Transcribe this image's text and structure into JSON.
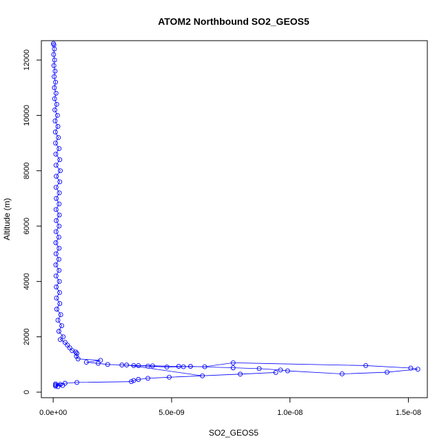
{
  "chart_data": {
    "type": "line",
    "title": "ATOM2 Northbound SO2_GEOS5",
    "xlabel": "SO2_GEOS5",
    "ylabel": "Altitude (m)",
    "xlim": [
      -5e-10,
      1.58e-08
    ],
    "ylim": [
      -200,
      12700
    ],
    "x_ticks": [
      {
        "value": 0,
        "label": "0.0e+00"
      },
      {
        "value": 5e-09,
        "label": "5.0e-09"
      },
      {
        "value": 1e-08,
        "label": "1.0e-08"
      },
      {
        "value": 1.5e-08,
        "label": "1.5e-08"
      }
    ],
    "y_ticks": [
      {
        "value": 0,
        "label": "0"
      },
      {
        "value": 2000,
        "label": "2000"
      },
      {
        "value": 4000,
        "label": "4000"
      },
      {
        "value": 6000,
        "label": "6000"
      },
      {
        "value": 8000,
        "label": "8000"
      },
      {
        "value": 10000,
        "label": "10000"
      },
      {
        "value": 12000,
        "label": "12000"
      }
    ],
    "grid": false,
    "color": "#0000ff",
    "marker": "open-circle",
    "series": [
      {
        "points": [
          [
            1e-11,
            12600
          ],
          [
            3e-11,
            12550
          ],
          [
            5e-11,
            12400
          ],
          [
            2e-11,
            12200
          ],
          [
            6e-11,
            12000
          ],
          [
            3e-11,
            11800
          ],
          [
            8e-11,
            11600
          ],
          [
            4e-11,
            11400
          ],
          [
            1e-10,
            11200
          ],
          [
            5e-11,
            11000
          ],
          [
            1.2e-10,
            10800
          ],
          [
            6e-11,
            10600
          ],
          [
            1.5e-10,
            10400
          ],
          [
            7e-11,
            10200
          ],
          [
            1.8e-10,
            10000
          ],
          [
            8e-11,
            9800
          ],
          [
            2e-10,
            9600
          ],
          [
            9e-11,
            9400
          ],
          [
            2.2e-10,
            9200
          ],
          [
            1e-10,
            9000
          ],
          [
            2.5e-10,
            8800
          ],
          [
            1.1e-10,
            8600
          ],
          [
            2.8e-10,
            8400
          ],
          [
            1.2e-10,
            8200
          ],
          [
            3e-10,
            8000
          ],
          [
            1.3e-10,
            7800
          ],
          [
            2.8e-10,
            7600
          ],
          [
            1.2e-10,
            7400
          ],
          [
            2.6e-10,
            7200
          ],
          [
            1.3e-10,
            7000
          ],
          [
            2.5e-10,
            6800
          ],
          [
            1.2e-10,
            6600
          ],
          [
            2.6e-10,
            6400
          ],
          [
            1.3e-10,
            6200
          ],
          [
            2.5e-10,
            6000
          ],
          [
            1.2e-10,
            5800
          ],
          [
            2.4e-10,
            5600
          ],
          [
            1.1e-10,
            5400
          ],
          [
            2.5e-10,
            5200
          ],
          [
            1.2e-10,
            5000
          ],
          [
            2.4e-10,
            4800
          ],
          [
            1.1e-10,
            4600
          ],
          [
            2.5e-10,
            4400
          ],
          [
            1.2e-10,
            4200
          ],
          [
            2.6e-10,
            4000
          ],
          [
            1.3e-10,
            3800
          ],
          [
            2.7e-10,
            3600
          ],
          [
            1.4e-10,
            3400
          ],
          [
            2.8e-10,
            3200
          ],
          [
            1.5e-10,
            3000
          ],
          [
            3.2e-10,
            2800
          ],
          [
            2e-10,
            2600
          ],
          [
            3.6e-10,
            2400
          ],
          [
            2.4e-10,
            2200
          ],
          [
            4.2e-10,
            2000
          ],
          [
            3e-10,
            1900
          ],
          [
            5e-10,
            1800
          ],
          [
            6e-10,
            1700
          ],
          [
            7e-10,
            1600
          ],
          [
            8e-10,
            1500
          ],
          [
            9.5e-10,
            1450
          ],
          [
            1e-09,
            1400
          ],
          [
            9.8e-10,
            1300
          ],
          [
            1.05e-09,
            1200
          ],
          [
            2e-09,
            1150
          ],
          [
            1.4e-09,
            1080
          ],
          [
            1.9e-09,
            1040
          ],
          [
            2.3e-09,
            1000
          ],
          [
            2.9e-09,
            980
          ],
          [
            3.6e-09,
            960
          ],
          [
            4.2e-09,
            950
          ],
          [
            5.3e-09,
            930
          ],
          [
            6.4e-09,
            920
          ],
          [
            7.6e-09,
            1060
          ],
          [
            1.32e-08,
            960
          ],
          [
            1.51e-08,
            870
          ],
          [
            1.54e-08,
            830
          ],
          [
            1.41e-08,
            720
          ],
          [
            1.22e-08,
            660
          ],
          [
            9.9e-09,
            770
          ],
          [
            9.6e-09,
            800
          ],
          [
            8.7e-09,
            850
          ],
          [
            7.6e-09,
            880
          ],
          [
            5.8e-09,
            930
          ],
          [
            5.5e-09,
            920
          ],
          [
            4.8e-09,
            910
          ],
          [
            4e-09,
            940
          ],
          [
            3.4e-09,
            960
          ],
          [
            3.1e-09,
            980
          ],
          [
            6.3e-09,
            590
          ],
          [
            7.9e-09,
            650
          ],
          [
            9.4e-09,
            710
          ],
          [
            4.9e-09,
            540
          ],
          [
            4e-09,
            500
          ],
          [
            3.6e-09,
            460
          ],
          [
            3.4e-09,
            420
          ],
          [
            3.3e-09,
            380
          ],
          [
            1e-09,
            350
          ],
          [
            5e-10,
            320
          ],
          [
            1e-10,
            300
          ],
          [
            3e-10,
            280
          ],
          [
            1e-10,
            260
          ],
          [
            4e-10,
            240
          ],
          [
            1e-10,
            220
          ],
          [
            2e-10,
            200
          ]
        ]
      }
    ]
  }
}
